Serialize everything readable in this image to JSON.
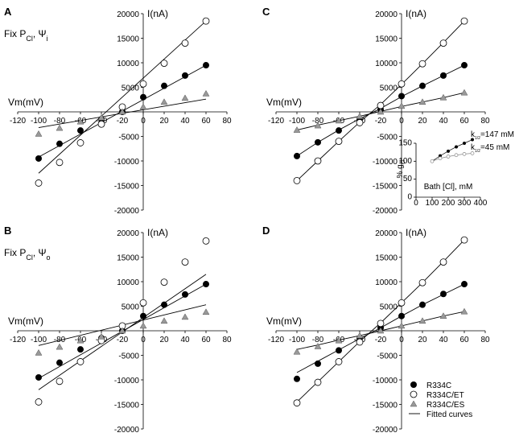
{
  "chart_data": [
    {
      "type": "scatter",
      "panel_label": "A",
      "annotation": [
        "Fix P",
        "Cl",
        ", Ψ",
        "i"
      ],
      "x_label": "Vm(mV)",
      "y_label": "I(nA)",
      "x": [
        -100,
        -80,
        -60,
        -40,
        -20,
        0,
        20,
        40,
        60
      ],
      "xlim": [
        -120,
        80
      ],
      "ylim": [
        -20000,
        20000
      ],
      "xticks": [
        -120,
        -100,
        -80,
        -60,
        -40,
        -20,
        0,
        20,
        40,
        60,
        80
      ],
      "yticks": [
        -20000,
        -15000,
        -10000,
        -5000,
        5000,
        10000,
        15000,
        20000
      ],
      "fit_x": [
        -100,
        60
      ],
      "series": [
        {
          "marker": "filled-circle",
          "color": "#000000",
          "values": [
            -9500,
            -6500,
            -3800,
            -1500,
            0,
            3000,
            5300,
            7400,
            9500
          ],
          "fit": [
            -9200,
            9500
          ]
        },
        {
          "marker": "open-circle",
          "color": "#000000",
          "values": [
            -14500,
            -10300,
            -6300,
            -2500,
            1000,
            5700,
            9900,
            14000,
            18500
          ],
          "fit": [
            -12500,
            18500
          ]
        },
        {
          "marker": "triangle",
          "color": "#999999",
          "values": [
            -4500,
            -3300,
            -2000,
            -1200,
            0,
            1000,
            2000,
            2800,
            3700
          ],
          "fit": [
            -3200,
            2600
          ]
        }
      ]
    },
    {
      "type": "scatter",
      "panel_label": "B",
      "annotation": [
        "Fix P",
        "Cl",
        ", Ψ",
        "o"
      ],
      "x_label": "Vm(mV)",
      "y_label": "I(nA)",
      "x": [
        -100,
        -80,
        -60,
        -40,
        -20,
        0,
        20,
        40,
        60
      ],
      "xlim": [
        -120,
        80
      ],
      "ylim": [
        -20000,
        20000
      ],
      "xticks": [
        -120,
        -100,
        -80,
        -60,
        -40,
        -20,
        0,
        20,
        40,
        60,
        80
      ],
      "yticks": [
        -20000,
        -15000,
        -10000,
        -5000,
        5000,
        10000,
        15000,
        20000
      ],
      "fit_x": [
        -100,
        60
      ],
      "series": [
        {
          "marker": "filled-circle",
          "color": "#000000",
          "values": [
            -9500,
            -6500,
            -3800,
            -1500,
            0,
            3000,
            5300,
            7400,
            9500
          ],
          "fit": [
            -9700,
            9500
          ]
        },
        {
          "marker": "open-circle",
          "color": "#000000",
          "values": [
            -14500,
            -10300,
            -6300,
            -2000,
            1000,
            5700,
            9900,
            14000,
            18300
          ],
          "fit": [
            -12000,
            11500
          ]
        },
        {
          "marker": "triangle",
          "color": "#999999",
          "values": [
            -4500,
            -3300,
            -2000,
            -1200,
            0,
            1000,
            2000,
            2800,
            3800
          ],
          "fit": [
            -3000,
            5300
          ]
        }
      ]
    },
    {
      "type": "scatter",
      "panel_label": "C",
      "x_label": "Vm(mV)",
      "y_label": "I(nA)",
      "x": [
        -100,
        -80,
        -60,
        -40,
        -20,
        0,
        20,
        40,
        60
      ],
      "xlim": [
        -120,
        80
      ],
      "ylim": [
        -20000,
        20000
      ],
      "xticks": [
        -120,
        -100,
        -80,
        -60,
        -40,
        -20,
        0,
        20,
        40,
        60,
        80
      ],
      "yticks": [
        -20000,
        -15000,
        -10000,
        -5000,
        5000,
        10000,
        15000,
        20000
      ],
      "fit_x": [
        -100,
        -80,
        -60,
        -40,
        -20,
        0,
        20,
        40,
        60
      ],
      "series": [
        {
          "marker": "filled-circle",
          "color": "#000000",
          "values": [
            -9000,
            -6200,
            -3800,
            -1500,
            500,
            3200,
            5300,
            7400,
            9500
          ],
          "fit": [
            -9000,
            -6200,
            -3700,
            -1400,
            700,
            3100,
            5300,
            7400,
            9500
          ]
        },
        {
          "marker": "open-circle",
          "color": "#000000",
          "values": [
            -14000,
            -10000,
            -6000,
            -2200,
            1300,
            5700,
            9800,
            14000,
            18500
          ],
          "fit": [
            -14000,
            -10000,
            -6000,
            -2100,
            1500,
            5600,
            9800,
            14100,
            18500
          ]
        },
        {
          "marker": "triangle",
          "color": "#999999",
          "values": [
            -3700,
            -2800,
            -1800,
            -900,
            0,
            1200,
            2000,
            2900,
            3900
          ],
          "fit": [
            -3700,
            -2700,
            -1800,
            -900,
            100,
            1100,
            2000,
            2900,
            3900
          ]
        }
      ]
    },
    {
      "type": "scatter",
      "panel_label": "D",
      "x_label": "Vm(mV)",
      "y_label": "I(nA)",
      "x": [
        -100,
        -80,
        -60,
        -40,
        -20,
        0,
        20,
        40,
        60
      ],
      "xlim": [
        -120,
        80
      ],
      "ylim": [
        -20000,
        20000
      ],
      "xticks": [
        -120,
        -100,
        -80,
        -60,
        -40,
        -20,
        0,
        20,
        40,
        60,
        80
      ],
      "yticks": [
        -20000,
        -15000,
        -10000,
        -5000,
        5000,
        10000,
        15000,
        20000
      ],
      "fit_x": [
        -100,
        -80,
        -60,
        -40,
        -20,
        0,
        20,
        40,
        60
      ],
      "fit_label": "Fitted curves",
      "series": [
        {
          "name": "R334C",
          "marker": "filled-circle",
          "color": "#000000",
          "values": [
            -9800,
            -6700,
            -4000,
            -1500,
            600,
            3000,
            5300,
            7500,
            9500
          ],
          "fit": [
            -8500,
            -6200,
            -3900,
            -1600,
            600,
            3000,
            5300,
            7400,
            9500
          ]
        },
        {
          "name": "R334C/ET",
          "marker": "open-circle",
          "color": "#000000",
          "values": [
            -14700,
            -10500,
            -6300,
            -2300,
            1500,
            5700,
            9800,
            14000,
            18500
          ],
          "fit": [
            -14500,
            -10400,
            -6300,
            -2200,
            1600,
            5700,
            9800,
            14100,
            18500
          ]
        },
        {
          "name": "R334C/ES",
          "marker": "triangle",
          "color": "#999999",
          "values": [
            -4300,
            -3200,
            -2000,
            -1000,
            0,
            1000,
            2000,
            3000,
            3900
          ],
          "fit": [
            -3800,
            -2900,
            -1900,
            -1000,
            0,
            1000,
            2000,
            3000,
            3900
          ]
        }
      ]
    },
    {
      "type": "scatter",
      "inset_of": "C",
      "x_label": "Bath [Cl], mM",
      "y_label": [
        "% g",
        "Cl"
      ],
      "x": [
        100,
        150,
        200,
        250,
        300,
        350
      ],
      "xlim": [
        0,
        400
      ],
      "ylim": [
        0,
        150
      ],
      "xticks": [
        0,
        100,
        200,
        300,
        400
      ],
      "yticks": [
        0,
        50,
        100,
        150
      ],
      "annotations": [
        [
          "k",
          "1/2",
          "=147 mM"
        ],
        [
          "k",
          "1/2",
          "=45 mM"
        ]
      ],
      "series": [
        {
          "marker": "small-filled",
          "color": "#000000",
          "values": [
            100,
            115,
            128,
            140,
            150,
            160
          ]
        },
        {
          "marker": "small-open",
          "color": "#888888",
          "values": [
            100,
            108,
            113,
            117,
            120,
            122
          ]
        }
      ]
    }
  ]
}
